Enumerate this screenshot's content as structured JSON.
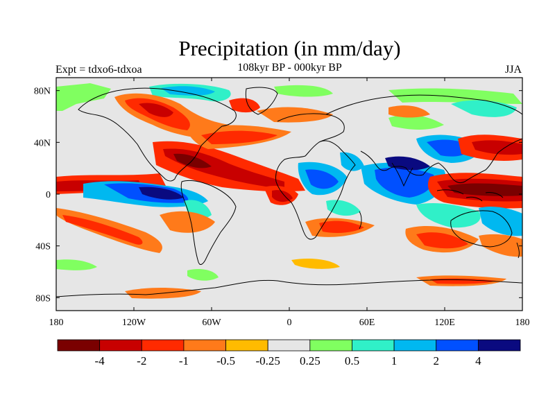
{
  "title": "Precipitation (in mm/day)",
  "subtitle_left": "Expt = tdxo6-tdxoa",
  "subtitle_center": "108kyr BP - 000kyr BP",
  "season": "JJA",
  "map": {
    "projection": "cylindrical-equidistant",
    "lon_range": [
      -180,
      180
    ],
    "lat_range": [
      -90,
      90
    ],
    "background_color": "#e6e6e6",
    "coastline_color": "#000000",
    "lat_ticks": [
      {
        "label": "80N"
      },
      {
        "label": "40N"
      },
      {
        "label": "0"
      },
      {
        "label": "40S"
      },
      {
        "label": "80S"
      }
    ],
    "lon_ticks": [
      {
        "label": "180"
      },
      {
        "label": "120W"
      },
      {
        "label": "60W"
      },
      {
        "label": "0"
      },
      {
        "label": "60E"
      },
      {
        "label": "120E"
      },
      {
        "label": "180"
      }
    ]
  },
  "colorbar": {
    "colors": [
      "#7a0000",
      "#c80000",
      "#ff2a00",
      "#ff7a1a",
      "#ffbb00",
      "#e6e6e6",
      "#80ff60",
      "#30f0c8",
      "#00b8f0",
      "#0050ff",
      "#0a0a80"
    ],
    "labels": [
      "-4",
      "-2",
      "-1",
      "-0.5",
      "-0.25",
      "0.25",
      "0.5",
      "1",
      "2",
      "4"
    ]
  }
}
